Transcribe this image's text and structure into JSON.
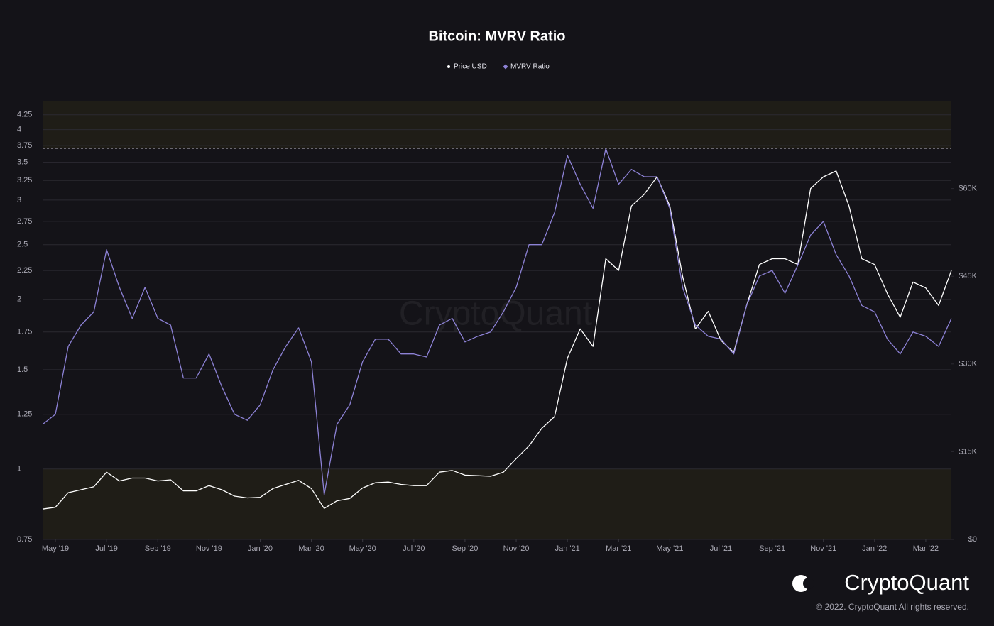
{
  "chart_data": {
    "type": "line",
    "title": "Bitcoin: MVRV Ratio",
    "watermark": "CryptoQuant",
    "brand": "CryptoQuant",
    "copyright": "© 2022. CryptoQuant All rights reserved.",
    "categories": [
      null,
      "May '19",
      null,
      null,
      null,
      "Jul '19",
      null,
      null,
      null,
      "Sep '19",
      null,
      null,
      null,
      "Nov '19",
      null,
      null,
      null,
      "Jan '20",
      null,
      null,
      null,
      "Mar '20",
      null,
      null,
      null,
      "May '20",
      null,
      null,
      null,
      "Jul '20",
      null,
      null,
      null,
      "Sep '20",
      null,
      null,
      null,
      "Nov '20",
      null,
      null,
      null,
      "Jan '21",
      null,
      null,
      null,
      "Mar '21",
      null,
      null,
      null,
      "May '21",
      null,
      null,
      null,
      "Jul '21",
      null,
      null,
      null,
      "Sep '21",
      null,
      null,
      null,
      "Nov '21",
      null,
      null,
      null,
      "Jan '22",
      null,
      null,
      null,
      "Mar '22",
      null,
      null
    ],
    "series": [
      {
        "name": "Price USD",
        "color": "#ffffff",
        "axis": "y2",
        "values": [
          5200,
          5500,
          8000,
          8500,
          9000,
          11500,
          10000,
          10500,
          10500,
          10000,
          10200,
          8300,
          8300,
          9200,
          8500,
          7400,
          7100,
          7200,
          8700,
          9400,
          10100,
          8700,
          5300,
          6600,
          7000,
          8800,
          9700,
          9800,
          9400,
          9200,
          9200,
          11500,
          11800,
          11000,
          10900,
          10800,
          11500,
          13800,
          16000,
          19000,
          21000,
          31000,
          36000,
          33000,
          48000,
          46000,
          57000,
          59000,
          62000,
          57000,
          45000,
          36000,
          39000,
          34000,
          32000,
          40000,
          47000,
          48000,
          48000,
          47000,
          60000,
          62000,
          63000,
          57000,
          48000,
          47000,
          42000,
          38000,
          44000,
          43000,
          40000,
          46000
        ]
      },
      {
        "name": "MVRV Ratio",
        "color": "#8d82d6",
        "values": [
          1.2,
          1.25,
          1.65,
          1.8,
          1.9,
          2.45,
          2.1,
          1.85,
          2.1,
          1.85,
          1.8,
          1.45,
          1.45,
          1.6,
          1.4,
          1.25,
          1.22,
          1.3,
          1.5,
          1.65,
          1.78,
          1.55,
          0.9,
          1.2,
          1.3,
          1.55,
          1.7,
          1.7,
          1.6,
          1.6,
          1.58,
          1.8,
          1.85,
          1.68,
          1.72,
          1.75,
          1.9,
          2.1,
          2.5,
          2.5,
          2.85,
          3.6,
          3.2,
          2.9,
          3.7,
          3.2,
          3.4,
          3.3,
          3.3,
          2.9,
          2.1,
          1.8,
          1.72,
          1.7,
          1.6,
          1.95,
          2.2,
          2.25,
          2.05,
          2.3,
          2.6,
          2.75,
          2.4,
          2.2,
          1.95,
          1.9,
          1.7,
          1.6,
          1.75,
          1.72,
          1.65,
          1.85
        ]
      }
    ],
    "log_y": true,
    "ylim": [
      0.75,
      4.5
    ],
    "yticks": [
      0.75,
      1,
      1.25,
      1.5,
      1.75,
      2,
      2.25,
      2.5,
      2.75,
      3,
      3.25,
      3.5,
      3.75,
      4,
      4.25
    ],
    "y2lim": [
      0,
      75000
    ],
    "y2ticks": [
      {
        "value": 0,
        "label": "$0"
      },
      {
        "value": 15000,
        "label": "$15K"
      },
      {
        "value": 30000,
        "label": "$30K"
      },
      {
        "value": 45000,
        "label": "$45K"
      },
      {
        "value": 60000,
        "label": "$60K"
      }
    ],
    "zones": [
      [
        3.7,
        4.5
      ],
      [
        0.75,
        1
      ]
    ],
    "zone_color": "#1f1d17",
    "grid": true
  }
}
